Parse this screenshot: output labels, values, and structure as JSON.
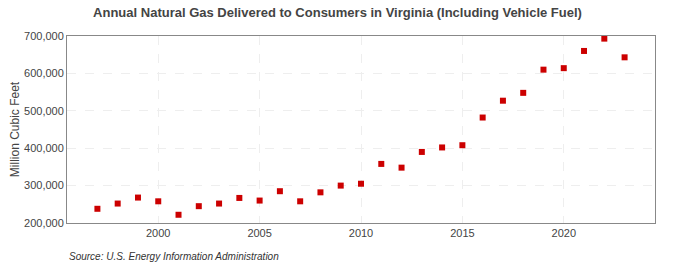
{
  "chart_data": {
    "type": "scatter",
    "title": "Annual Natural Gas Delivered to Consumers in Virginia (Including Vehicle Fuel)",
    "ylabel": "Million Cubic Feet",
    "annotations": [
      "Source: U.S. Energy Information Administration"
    ],
    "x": [
      1997,
      1998,
      1999,
      2000,
      2001,
      2002,
      2003,
      2004,
      2005,
      2006,
      2007,
      2008,
      2009,
      2010,
      2011,
      2012,
      2013,
      2014,
      2015,
      2016,
      2017,
      2018,
      2019,
      2020,
      2021,
      2022,
      2023
    ],
    "values": [
      238000,
      252000,
      268000,
      258000,
      222000,
      245000,
      252000,
      267000,
      260000,
      285000,
      258000,
      282000,
      300000,
      305000,
      358000,
      348000,
      390000,
      402000,
      408000,
      482000,
      527000,
      548000,
      610000,
      614000,
      660000,
      693000,
      643000
    ],
    "color": "#cc0000",
    "marker": "square",
    "xlim": [
      1995.5,
      2024.5
    ],
    "ylim": [
      200000,
      700000
    ],
    "xticks": [
      2000,
      2005,
      2010,
      2015,
      2020
    ],
    "yticks": [
      {
        "value": 200000,
        "label": "200,000"
      },
      {
        "value": 300000,
        "label": "300,000"
      },
      {
        "value": 400000,
        "label": "400,000"
      },
      {
        "value": 500000,
        "label": "500,000"
      },
      {
        "value": 600000,
        "label": "600,000"
      },
      {
        "value": 700000,
        "label": "700,000"
      }
    ],
    "grid": true
  }
}
